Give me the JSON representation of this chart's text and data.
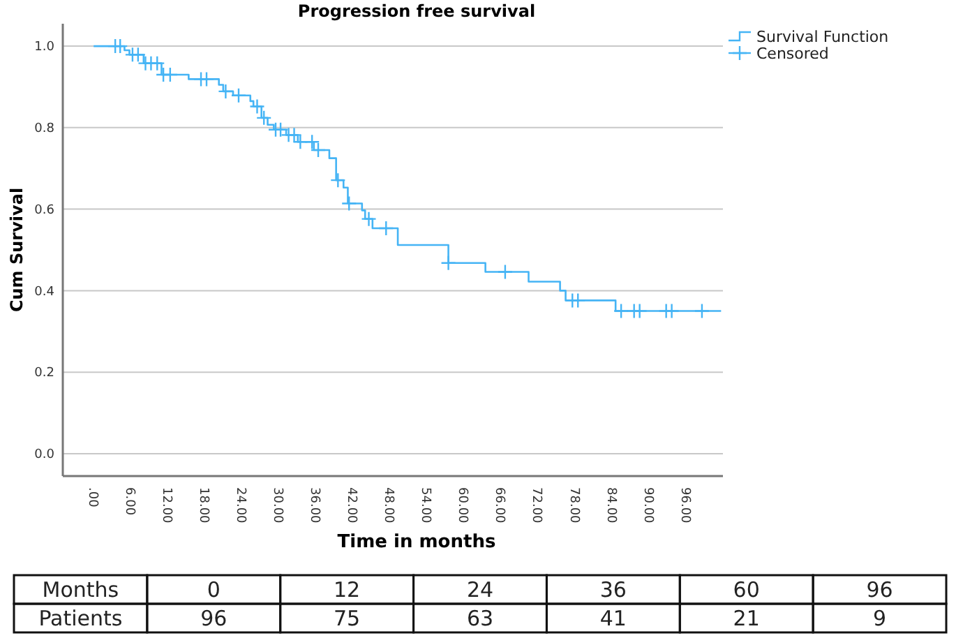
{
  "chart_data": {
    "type": "step",
    "title": "Progression free survival",
    "xlabel": "Time in months",
    "ylabel": "Cum Survival",
    "xlim": [
      -5,
      102
    ],
    "ylim": [
      -0.055,
      1.055
    ],
    "xticks": [
      {
        "value": 0,
        "label": ".00"
      },
      {
        "value": 6,
        "label": "6.00"
      },
      {
        "value": 12,
        "label": "12.00"
      },
      {
        "value": 18,
        "label": "18.00"
      },
      {
        "value": 24,
        "label": "24.00"
      },
      {
        "value": 30,
        "label": "30.00"
      },
      {
        "value": 36,
        "label": "36.00"
      },
      {
        "value": 42,
        "label": "42.00"
      },
      {
        "value": 48,
        "label": "48.00"
      },
      {
        "value": 54,
        "label": "54.00"
      },
      {
        "value": 60,
        "label": "60.00"
      },
      {
        "value": 66,
        "label": "66.00"
      },
      {
        "value": 72,
        "label": "72.00"
      },
      {
        "value": 78,
        "label": "78.00"
      },
      {
        "value": 84,
        "label": "84.00"
      },
      {
        "value": 90,
        "label": "90.00"
      },
      {
        "value": 96,
        "label": "96.00"
      }
    ],
    "yticks": [
      {
        "value": 0,
        "label": "0.0"
      },
      {
        "value": 0.2,
        "label": "0.2"
      },
      {
        "value": 0.4,
        "label": "0.4"
      },
      {
        "value": 0.6,
        "label": "0.6"
      },
      {
        "value": 0.8,
        "label": "0.8"
      },
      {
        "value": 1,
        "label": "1.0"
      }
    ],
    "grid": "y",
    "legend": "top right",
    "series": [
      {
        "name": "Survival Function",
        "type": "step",
        "color": "#45b4f5",
        "x": [
          0,
          5,
          5.8,
          8.1,
          11,
          15.4,
          20.3,
          21,
          22.6,
          25.4,
          25.9,
          27.2,
          28.2,
          29.2,
          31.2,
          33.1,
          35.7,
          38.2,
          39.3,
          40.5,
          41.2,
          43.5,
          44,
          45.2,
          49.3,
          57.5,
          63.5,
          70.5,
          75.6,
          76.5,
          84.6,
          101.7
        ],
        "values": [
          1.0,
          0.99,
          0.979,
          0.958,
          0.93,
          0.919,
          0.905,
          0.889,
          0.879,
          0.865,
          0.852,
          0.824,
          0.807,
          0.795,
          0.782,
          0.765,
          0.745,
          0.725,
          0.671,
          0.653,
          0.614,
          0.597,
          0.576,
          0.553,
          0.512,
          0.468,
          0.446,
          0.422,
          0.4,
          0.376,
          0.35,
          0.35
        ]
      },
      {
        "name": "Censored",
        "type": "scatter",
        "marker": "cross",
        "color": "#45b4f5",
        "x": [
          3.5,
          4.3,
          6.3,
          7.2,
          8.4,
          9.3,
          10.3,
          11.3,
          12.4,
          17.4,
          18.3,
          21.4,
          23.5,
          26.5,
          27.6,
          29.5,
          30.3,
          31.6,
          32.5,
          33.5,
          35.4,
          36.4,
          39.6,
          41.4,
          44.6,
          47.4,
          57.5,
          66.7,
          77.6,
          78.5,
          85.5,
          87.6,
          88.5,
          92.8,
          93.7,
          98.6
        ],
        "values": [
          1,
          1,
          0.979,
          0.979,
          0.958,
          0.958,
          0.958,
          0.93,
          0.93,
          0.919,
          0.919,
          0.889,
          0.879,
          0.852,
          0.824,
          0.795,
          0.795,
          0.782,
          0.782,
          0.765,
          0.765,
          0.745,
          0.671,
          0.614,
          0.576,
          0.553,
          0.468,
          0.446,
          0.376,
          0.376,
          0.35,
          0.35,
          0.35,
          0.35,
          0.35,
          0.35
        ]
      }
    ],
    "annotations": [
      "Months",
      "0",
      "12",
      "24",
      "36",
      "60",
      "96",
      "Patients",
      "96",
      "75",
      "63",
      "41",
      "21",
      "9"
    ]
  }
}
